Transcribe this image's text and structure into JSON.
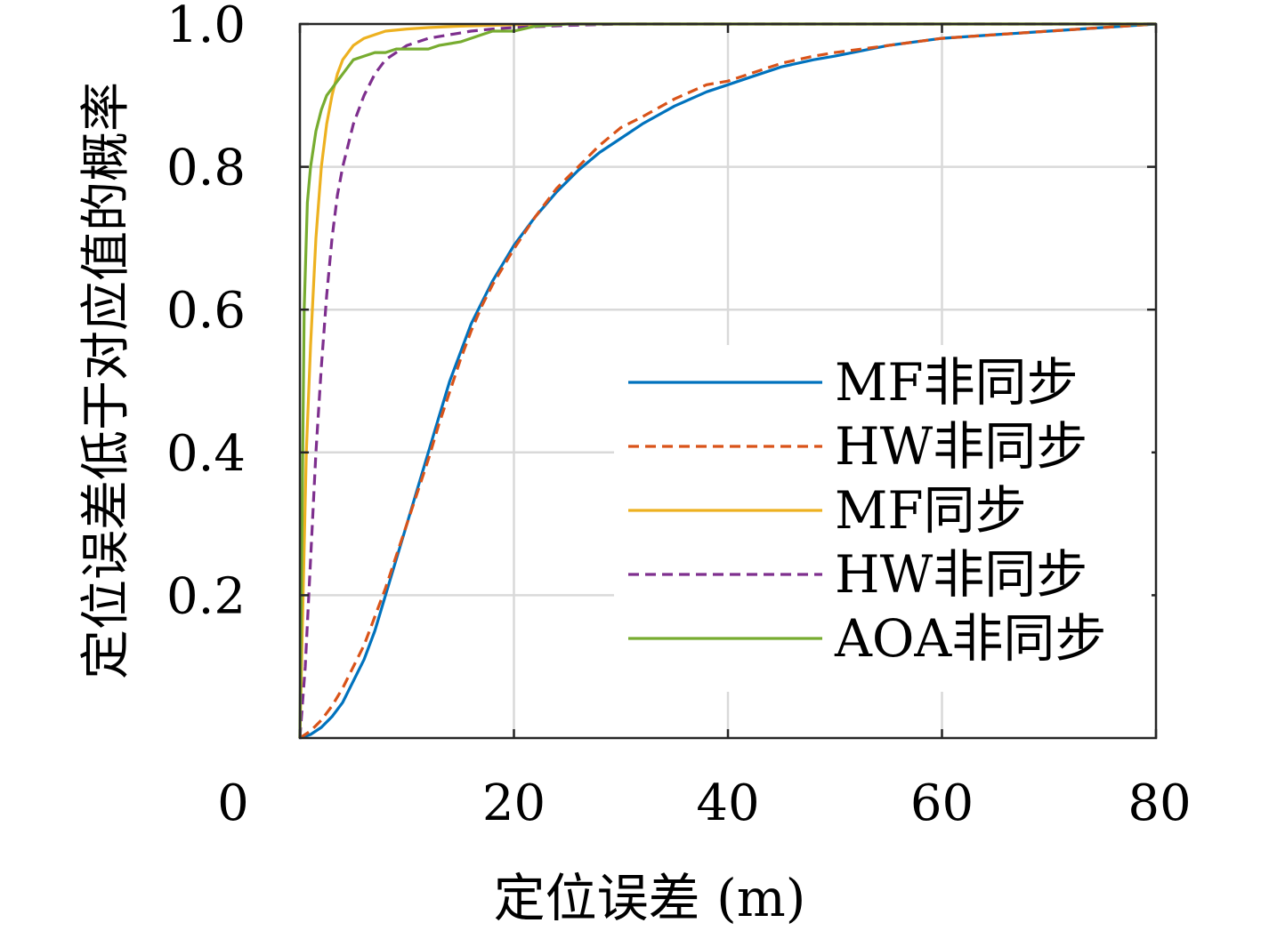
{
  "chart_data": {
    "type": "line",
    "title": "",
    "xlabel": "定位误差 (m)",
    "ylabel": "定位误差低于对应值的概率",
    "xlim": [
      0,
      80
    ],
    "ylim": [
      0,
      1
    ],
    "xticks": [
      0,
      20,
      40,
      60,
      80
    ],
    "xtick_labels": [
      "0",
      "20",
      "40",
      "60",
      "80"
    ],
    "yticks": [
      0.2,
      0.4,
      0.6,
      0.8,
      1.0
    ],
    "ytick_labels": [
      "0.2",
      "0.4",
      "0.6",
      "0.8",
      "1.0"
    ],
    "grid": true,
    "legend_position": "right",
    "series": [
      {
        "name": "MF非同步",
        "color": "#0072BD",
        "dash": "solid",
        "x": [
          0,
          1,
          2,
          3,
          4,
          5,
          6,
          7,
          8,
          9,
          10,
          11,
          12,
          13,
          14,
          15,
          16,
          17,
          18,
          20,
          22,
          24,
          26,
          28,
          30,
          32,
          35,
          38,
          40,
          42,
          45,
          48,
          50,
          55,
          60,
          65,
          70,
          75,
          80
        ],
        "y": [
          0,
          0.005,
          0.015,
          0.03,
          0.05,
          0.08,
          0.11,
          0.15,
          0.2,
          0.25,
          0.3,
          0.35,
          0.4,
          0.45,
          0.5,
          0.54,
          0.58,
          0.61,
          0.64,
          0.69,
          0.73,
          0.765,
          0.795,
          0.82,
          0.84,
          0.86,
          0.885,
          0.905,
          0.915,
          0.925,
          0.94,
          0.95,
          0.955,
          0.97,
          0.98,
          0.985,
          0.99,
          0.995,
          1.0
        ]
      },
      {
        "name": "HW非同步",
        "color": "#D95319",
        "dash": "dashed",
        "x": [
          0,
          1,
          2,
          3,
          4,
          5,
          6,
          7,
          8,
          9,
          10,
          11,
          12,
          13,
          14,
          15,
          16,
          17,
          18,
          20,
          22,
          24,
          26,
          28,
          30,
          32,
          35,
          38,
          40,
          42,
          45,
          48,
          50,
          55,
          60,
          65,
          70,
          75,
          80
        ],
        "y": [
          0,
          0.01,
          0.025,
          0.045,
          0.07,
          0.1,
          0.13,
          0.17,
          0.21,
          0.255,
          0.3,
          0.345,
          0.39,
          0.44,
          0.485,
          0.53,
          0.57,
          0.605,
          0.635,
          0.685,
          0.73,
          0.77,
          0.8,
          0.83,
          0.855,
          0.87,
          0.895,
          0.915,
          0.92,
          0.93,
          0.945,
          0.955,
          0.96,
          0.97,
          0.98,
          0.985,
          0.99,
          0.995,
          1.0
        ]
      },
      {
        "name": "MF同步",
        "color": "#EDB120",
        "dash": "solid",
        "x": [
          0,
          0.3,
          0.6,
          1,
          1.5,
          2,
          2.5,
          3,
          3.5,
          4,
          5,
          6,
          7,
          8,
          10,
          12,
          15,
          20,
          25,
          30,
          40,
          50,
          60,
          70,
          80
        ],
        "y": [
          0,
          0.2,
          0.4,
          0.55,
          0.7,
          0.8,
          0.86,
          0.9,
          0.93,
          0.95,
          0.97,
          0.98,
          0.985,
          0.99,
          0.993,
          0.995,
          0.997,
          0.999,
          1.0,
          1.0,
          1.0,
          1.0,
          1.0,
          1.0,
          1.0
        ]
      },
      {
        "name": "HW非同步",
        "color": "#7E2F8E",
        "dash": "dashed",
        "x": [
          0,
          0.5,
          1,
          1.5,
          2,
          2.5,
          3,
          3.5,
          4,
          4.5,
          5,
          6,
          7,
          8,
          9,
          10,
          11,
          12,
          14,
          16,
          18,
          20,
          25,
          30,
          40,
          50,
          60,
          70,
          80
        ],
        "y": [
          0,
          0.1,
          0.25,
          0.4,
          0.52,
          0.62,
          0.7,
          0.76,
          0.8,
          0.83,
          0.86,
          0.9,
          0.93,
          0.95,
          0.96,
          0.97,
          0.975,
          0.98,
          0.985,
          0.99,
          0.993,
          0.995,
          0.998,
          1.0,
          1.0,
          1.0,
          1.0,
          1.0,
          1.0
        ]
      },
      {
        "name": "AOA非同步",
        "color": "#77AC30",
        "dash": "solid",
        "x": [
          0,
          0.2,
          0.4,
          0.7,
          1,
          1.5,
          2,
          2.5,
          3,
          3.5,
          4,
          5,
          6,
          7,
          8,
          9,
          10,
          11,
          12,
          13,
          15,
          17,
          18,
          20,
          22,
          25,
          30,
          40,
          50,
          60,
          70,
          80
        ],
        "y": [
          0,
          0.3,
          0.6,
          0.75,
          0.8,
          0.85,
          0.88,
          0.9,
          0.91,
          0.92,
          0.93,
          0.95,
          0.955,
          0.96,
          0.96,
          0.965,
          0.965,
          0.965,
          0.965,
          0.97,
          0.975,
          0.985,
          0.99,
          0.99,
          0.997,
          1.0,
          1.0,
          1.0,
          1.0,
          1.0,
          1.0,
          1.0
        ]
      }
    ]
  }
}
